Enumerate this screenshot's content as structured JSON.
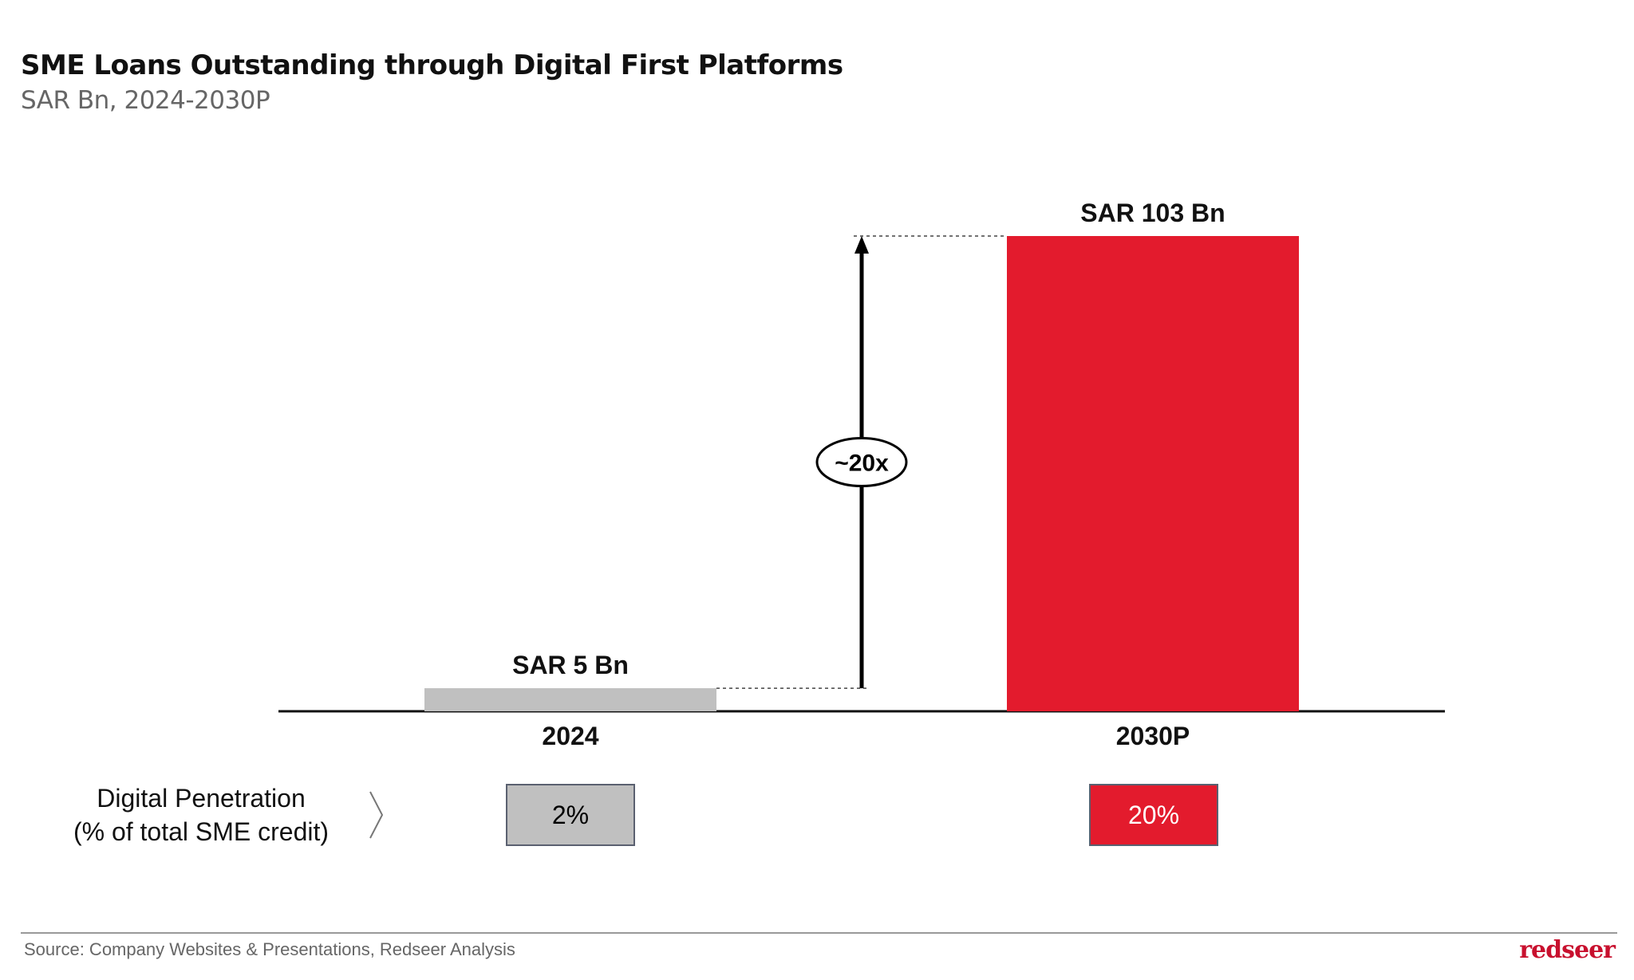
{
  "header": {
    "title": "SME Loans Outstanding through Digital First Platforms",
    "subtitle": "SAR Bn, 2024-2030P"
  },
  "chart_data": {
    "type": "bar",
    "categories": [
      "2024",
      "2030P"
    ],
    "values": [
      5,
      103
    ],
    "data_labels": [
      "SAR 5 Bn",
      "SAR 103 Bn"
    ],
    "colors": [
      "#c0c0c0",
      "#e31b2d"
    ],
    "annotation": "~20x",
    "ylim": [
      0,
      103
    ],
    "grid": false
  },
  "penetration": {
    "label_line1": "Digital Penetration",
    "label_line2": "(% of total SME credit)",
    "values": [
      "2%",
      "20%"
    ],
    "colors": [
      "#c0c0c0",
      "#e31b2d"
    ]
  },
  "footer": {
    "source": "Source: Company Websites & Presentations, Redseer Analysis",
    "logo": "redseer"
  }
}
